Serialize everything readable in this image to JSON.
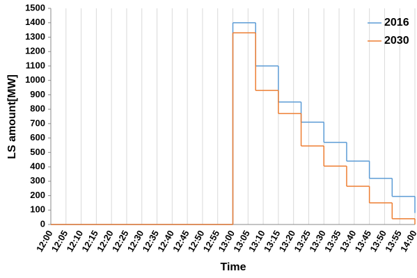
{
  "chart_data": {
    "type": "step",
    "x_label": "Time",
    "y_label": "LS amount[MW]",
    "x": [
      720,
      780,
      787.5,
      795,
      802.5,
      810,
      817.5,
      825,
      832.5,
      840
    ],
    "series": [
      {
        "name": "2016",
        "color": "#5b9bd5",
        "values": [
          0,
          1400,
          1100,
          850,
          710,
          570,
          440,
          320,
          195,
          80
        ]
      },
      {
        "name": "2030",
        "color": "#ed7d31",
        "values": [
          0,
          1330,
          930,
          770,
          545,
          405,
          265,
          150,
          40,
          0
        ]
      }
    ],
    "xlim": [
      720,
      840
    ],
    "xticks": [
      {
        "value": 720,
        "label": "12:00"
      },
      {
        "value": 725,
        "label": "12:05"
      },
      {
        "value": 730,
        "label": "12:10"
      },
      {
        "value": 735,
        "label": "12:15"
      },
      {
        "value": 740,
        "label": "12:20"
      },
      {
        "value": 745,
        "label": "12:25"
      },
      {
        "value": 750,
        "label": "12:30"
      },
      {
        "value": 755,
        "label": "12:35"
      },
      {
        "value": 760,
        "label": "12:40"
      },
      {
        "value": 765,
        "label": "12:45"
      },
      {
        "value": 770,
        "label": "12:50"
      },
      {
        "value": 775,
        "label": "12:55"
      },
      {
        "value": 780,
        "label": "13:00"
      },
      {
        "value": 785,
        "label": "13:05"
      },
      {
        "value": 790,
        "label": "13:10"
      },
      {
        "value": 795,
        "label": "13:15"
      },
      {
        "value": 800,
        "label": "13:20"
      },
      {
        "value": 805,
        "label": "13:25"
      },
      {
        "value": 810,
        "label": "13:30"
      },
      {
        "value": 815,
        "label": "13:35"
      },
      {
        "value": 820,
        "label": "13:40"
      },
      {
        "value": 825,
        "label": "13:45"
      },
      {
        "value": 830,
        "label": "13:50"
      },
      {
        "value": 835,
        "label": "13:55"
      },
      {
        "value": 840,
        "label": "14:00"
      }
    ],
    "ylim": [
      0,
      1500
    ],
    "yticks": [
      0,
      100,
      200,
      300,
      400,
      500,
      600,
      700,
      800,
      900,
      1000,
      1100,
      1200,
      1300,
      1400,
      1500
    ],
    "grid": "x",
    "legend": "top-right"
  }
}
